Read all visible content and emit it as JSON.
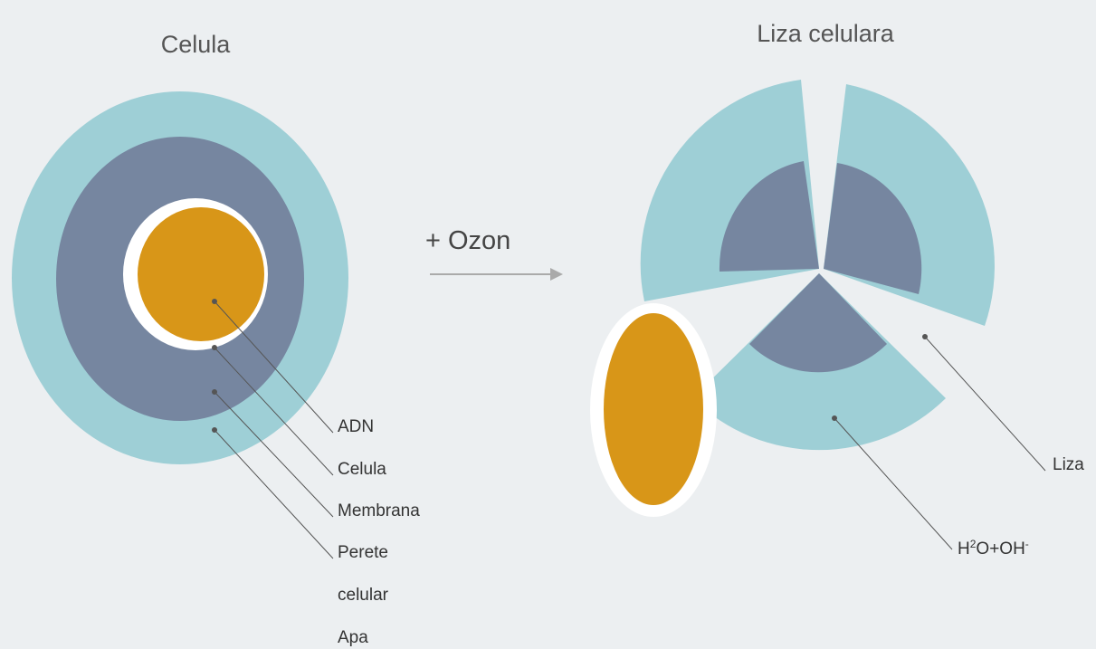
{
  "left": {
    "title": "Celula",
    "labels": [
      "ADN",
      "Celula",
      "Membrana",
      "Perete",
      "celular",
      "Apa"
    ]
  },
  "arrow": {
    "label": "+ Ozon"
  },
  "right": {
    "title": "Liza celulara",
    "liza_label": "Liza",
    "product_label": {
      "base1": "H",
      "sup1": "2",
      "base2": "O+OH",
      "sup2": "-"
    }
  }
}
